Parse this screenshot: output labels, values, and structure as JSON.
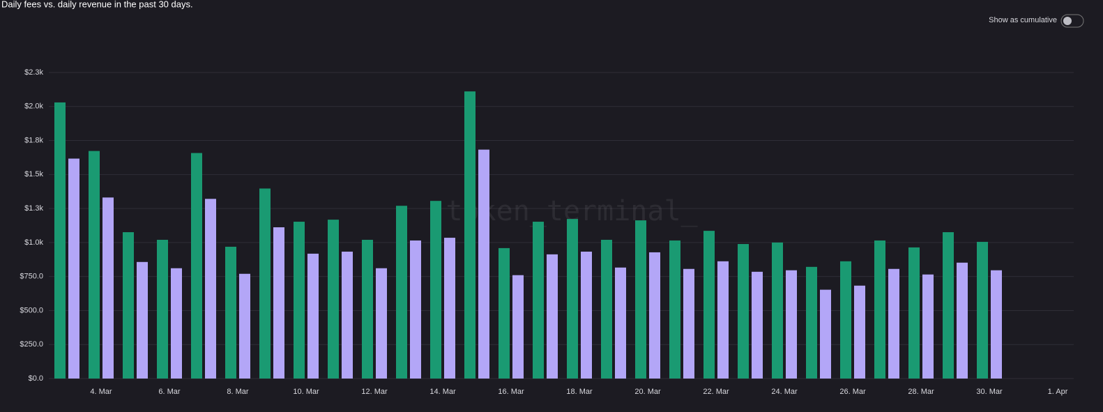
{
  "controls": {
    "cumulative_toggle": "Show as cumulative"
  },
  "watermark": "token_terminal_",
  "chart_data": {
    "type": "bar",
    "title": "Daily fees vs. daily revenue in the past 30 days.",
    "categories": [
      null,
      "4. Mar",
      null,
      "6. Mar",
      null,
      "8. Mar",
      null,
      "10. Mar",
      null,
      "12. Mar",
      null,
      "14. Mar",
      null,
      "16. Mar",
      null,
      "18. Mar",
      null,
      "20. Mar",
      null,
      "22. Mar",
      null,
      "24. Mar",
      null,
      "26. Mar",
      null,
      "28. Mar",
      null,
      "30. Mar",
      null,
      "1. Apr"
    ],
    "series": [
      {
        "color": "#1a9a72",
        "values": [
          2030,
          1673,
          1076,
          1020,
          1658,
          969,
          1397,
          1153,
          1168,
          1020,
          1270,
          1306,
          2111,
          959,
          1153,
          1173,
          1020,
          1163,
          1015,
          1086,
          989,
          1000,
          821,
          862,
          1015,
          964,
          1076,
          1005,
          null,
          null
        ]
      },
      {
        "color": "#b3a6f7",
        "values": [
          1617,
          1331,
          857,
          811,
          1321,
          770,
          1112,
          918,
          933,
          811,
          1015,
          1035,
          1683,
          760,
          913,
          933,
          816,
          928,
          806,
          862,
          785,
          796,
          653,
          683,
          806,
          765,
          852,
          796,
          null,
          null
        ]
      }
    ],
    "ylim": [
      0,
      2250
    ],
    "yticks": [
      {
        "value": 0,
        "label": "$0.0"
      },
      {
        "value": 250,
        "label": "$250.0"
      },
      {
        "value": 500,
        "label": "$500.0"
      },
      {
        "value": 750,
        "label": "$750.0"
      },
      {
        "value": 1000,
        "label": "$1.0k"
      },
      {
        "value": 1250,
        "label": "$1.3k"
      },
      {
        "value": 1500,
        "label": "$1.5k"
      },
      {
        "value": 1750,
        "label": "$1.8k"
      },
      {
        "value": 2000,
        "label": "$2.0k"
      },
      {
        "value": 2250,
        "label": "$2.3k"
      }
    ],
    "grid": true
  }
}
